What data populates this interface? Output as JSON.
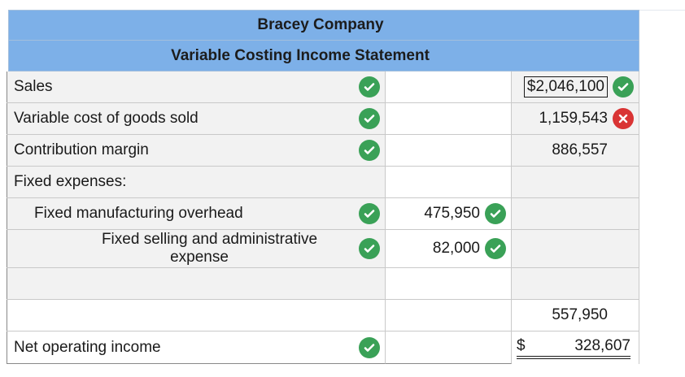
{
  "header": {
    "company": "Bracey Company",
    "statement": "Variable Costing Income Statement"
  },
  "rows": {
    "sales": {
      "label": "Sales",
      "right": "$2,046,100",
      "right_status": "correct"
    },
    "vcogs": {
      "label": "Variable cost of goods sold",
      "right": "1,159,543",
      "right_status": "incorrect"
    },
    "cm": {
      "label": "Contribution margin",
      "right": "886,557"
    },
    "fixed": {
      "label": "Fixed expenses:"
    },
    "fmo": {
      "label": "Fixed manufacturing overhead",
      "mid": "475,950",
      "mid_status": "correct"
    },
    "fsa": {
      "label_line1": "Fixed selling and administrative",
      "label_line2": "expense",
      "mid": "82,000",
      "mid_status": "correct"
    },
    "total_fixed": {
      "right": "557,950"
    },
    "noi": {
      "label": "Net operating income",
      "currency": "$",
      "right": "328,607"
    }
  },
  "colors": {
    "header_bg": "#7db0e8",
    "correct": "#3aa157",
    "incorrect": "#d93434"
  },
  "icons": [
    "check-circle-icon",
    "x-circle-icon"
  ]
}
